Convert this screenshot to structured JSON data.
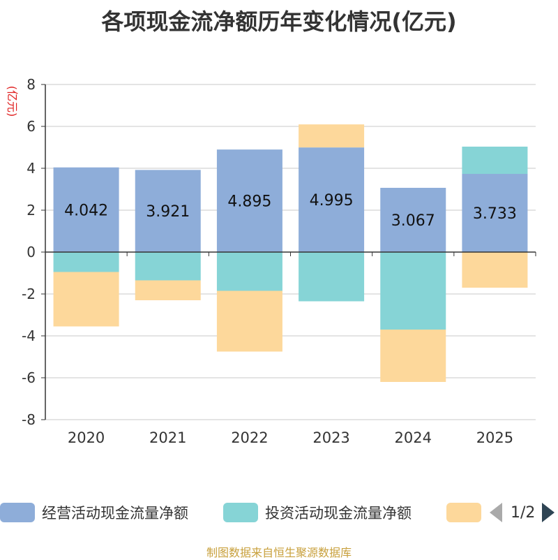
{
  "chart_data": {
    "type": "bar",
    "stacked": true,
    "title": "各项现金流净额历年变化情况(亿元)",
    "ylabel": "(亿元)",
    "ylim": [
      -8,
      8
    ],
    "yticks": [
      8,
      6,
      4,
      2,
      0,
      -2,
      -4,
      -6,
      -8
    ],
    "categories": [
      "2020",
      "2021",
      "2022",
      "2023",
      "2024",
      "2025"
    ],
    "series": [
      {
        "name": "经营活动现金流量净额",
        "color": "#8eadd9",
        "values": [
          4.042,
          3.921,
          4.895,
          4.995,
          3.067,
          3.733
        ]
      },
      {
        "name": "投资活动现金流量净额",
        "color": "#86d4d6",
        "values": [
          -0.95,
          -1.35,
          -1.85,
          -2.35,
          -3.7,
          1.3
        ]
      },
      {
        "name": "",
        "color": "#fdd89b",
        "values": [
          -2.6,
          -0.95,
          -2.9,
          1.1,
          -2.5,
          -1.7
        ]
      }
    ],
    "data_labels": [
      "4.042",
      "3.921",
      "4.895",
      "4.995",
      "3.067",
      "3.733"
    ],
    "legend_position": "bottom"
  },
  "legend": {
    "page": "1/2"
  },
  "source": "制图数据来自恒生聚源数据库"
}
